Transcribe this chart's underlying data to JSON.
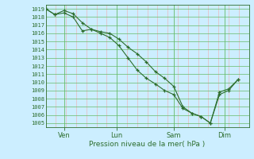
{
  "title": "Pression niveau de la mer( hPa )",
  "ylabel_values": [
    1005,
    1006,
    1007,
    1008,
    1009,
    1010,
    1011,
    1012,
    1013,
    1014,
    1015,
    1016,
    1017,
    1018,
    1019
  ],
  "ylim": [
    1004.5,
    1019.5
  ],
  "bg_color": "#cceeff",
  "grid_color_minor": "#f0aaaa",
  "grid_color_major": "#66bb66",
  "line_color": "#2d6e2d",
  "x_ticks_labels": [
    "Ven",
    "Lun",
    "Sam",
    "Dim"
  ],
  "x_ticks_pos": [
    0.09,
    0.35,
    0.63,
    0.88
  ],
  "line1_x": [
    0.0,
    0.045,
    0.09,
    0.135,
    0.18,
    0.225,
    0.27,
    0.315,
    0.36,
    0.405,
    0.45,
    0.495,
    0.54,
    0.585,
    0.63,
    0.675,
    0.72,
    0.765,
    0.81,
    0.855,
    0.9,
    0.945
  ],
  "line1_y": [
    1019.0,
    1018.3,
    1018.5,
    1018.0,
    1016.3,
    1016.5,
    1016.0,
    1015.5,
    1014.5,
    1013.0,
    1011.5,
    1010.5,
    1009.8,
    1009.0,
    1008.5,
    1006.8,
    1006.2,
    1005.8,
    1005.0,
    1008.8,
    1009.2,
    1010.3
  ],
  "line2_x": [
    0.0,
    0.045,
    0.09,
    0.135,
    0.18,
    0.225,
    0.27,
    0.315,
    0.36,
    0.405,
    0.45,
    0.495,
    0.54,
    0.585,
    0.63,
    0.675,
    0.72,
    0.765,
    0.81,
    0.855,
    0.9,
    0.945
  ],
  "line2_y": [
    1019.0,
    1018.3,
    1018.8,
    1018.4,
    1017.3,
    1016.5,
    1016.2,
    1016.0,
    1015.3,
    1014.3,
    1013.5,
    1012.5,
    1011.3,
    1010.5,
    1009.5,
    1007.0,
    1006.2,
    1005.8,
    1005.0,
    1008.5,
    1009.0,
    1010.3
  ],
  "figsize": [
    3.2,
    2.0
  ],
  "dpi": 100
}
